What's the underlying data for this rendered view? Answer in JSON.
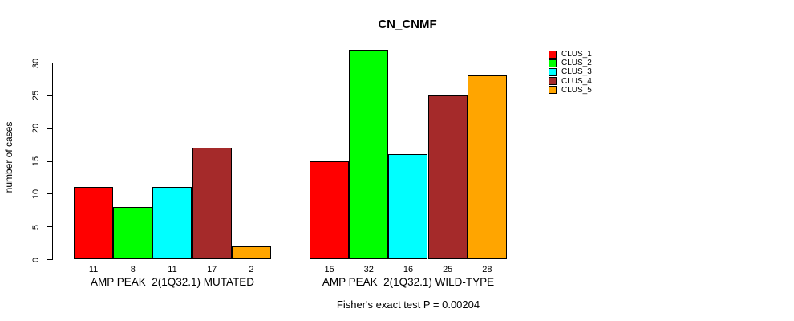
{
  "title": "CN_CNMF",
  "ylabel": "number of cases",
  "footer": "Fisher's exact test P = 0.00204",
  "legend": [
    {
      "label": "CLUS_1",
      "color": "#FF0000"
    },
    {
      "label": "CLUS_2",
      "color": "#00FF00"
    },
    {
      "label": "CLUS_3",
      "color": "#00FFFF"
    },
    {
      "label": "CLUS_4",
      "color": "#A52A2A"
    },
    {
      "label": "CLUS_5",
      "color": "#FFA500"
    }
  ],
  "chart_data": {
    "type": "bar",
    "title": "CN_CNMF",
    "ylabel": "number of cases",
    "xlabel": "",
    "ylim": [
      0,
      30
    ],
    "yticks": [
      0,
      5,
      10,
      15,
      20,
      25,
      30
    ],
    "grid": false,
    "legend_position": "right-outside",
    "series_labels": [
      "CLUS_1",
      "CLUS_2",
      "CLUS_3",
      "CLUS_4",
      "CLUS_5"
    ],
    "series_colors": [
      "#FF0000",
      "#00FF00",
      "#00FFFF",
      "#A52A2A",
      "#FFA500"
    ],
    "groups": [
      {
        "label": "AMP PEAK  2(1Q32.1) MUTATED",
        "values": [
          11,
          8,
          11,
          17,
          2
        ]
      },
      {
        "label": "AMP PEAK  2(1Q32.1) WILD-TYPE",
        "values": [
          15,
          32,
          16,
          25,
          28
        ]
      }
    ],
    "bar_value_labels_shown": true,
    "annotation": "Fisher's exact test P = 0.00204"
  }
}
